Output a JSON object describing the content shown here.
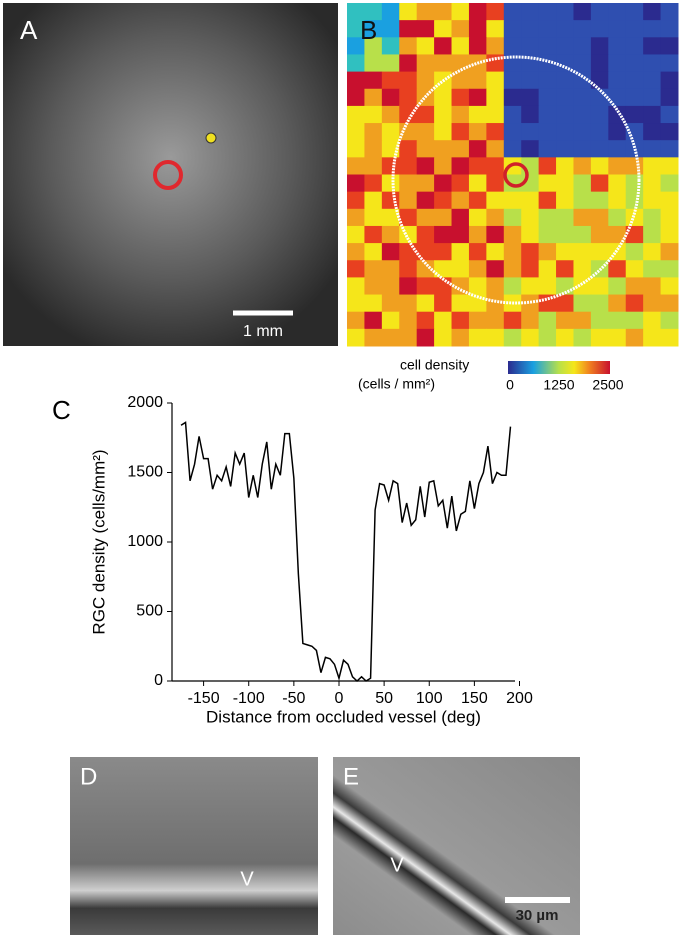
{
  "panels": {
    "a": {
      "label": "A",
      "scale_bar": "1 mm"
    },
    "b": {
      "label": "B"
    },
    "colorbar": {
      "title": "cell density",
      "unit": "(cells / mm²)",
      "ticks": [
        0,
        1250,
        2500
      ]
    },
    "c": {
      "label": "C"
    },
    "d": {
      "label": "D",
      "vessel": "V"
    },
    "e": {
      "label": "E",
      "vessel": "V",
      "scale_bar": "30 µm"
    }
  },
  "chart_data": {
    "type": "line",
    "x_label": "Distance from occluded vessel (deg)",
    "y_label": "RGC density (cells/mm²)",
    "x": [
      -175,
      -170,
      -165,
      -160,
      -155,
      -150,
      -145,
      -140,
      -135,
      -130,
      -125,
      -120,
      -115,
      -110,
      -105,
      -100,
      -95,
      -90,
      -85,
      -80,
      -75,
      -70,
      -65,
      -60,
      -55,
      -50,
      -45,
      -40,
      -35,
      -30,
      -25,
      -20,
      -15,
      -10,
      -5,
      0,
      5,
      10,
      15,
      20,
      25,
      30,
      35,
      40,
      45,
      50,
      55,
      60,
      65,
      70,
      75,
      80,
      85,
      90,
      95,
      100,
      105,
      110,
      115,
      120,
      125,
      130,
      135,
      140,
      145,
      150,
      155,
      160,
      165,
      170,
      175,
      180,
      185,
      190
    ],
    "values": [
      1840,
      1860,
      1440,
      1560,
      1760,
      1600,
      1600,
      1380,
      1480,
      1440,
      1540,
      1400,
      1640,
      1560,
      1640,
      1320,
      1480,
      1320,
      1560,
      1720,
      1380,
      1560,
      1480,
      1780,
      1780,
      1460,
      770,
      270,
      260,
      250,
      220,
      60,
      170,
      160,
      120,
      20,
      150,
      120,
      30,
      0,
      30,
      0,
      20,
      1230,
      1420,
      1410,
      1300,
      1440,
      1420,
      1140,
      1280,
      1120,
      1160,
      1400,
      1180,
      1430,
      1440,
      1260,
      1300,
      1100,
      1330,
      1080,
      1200,
      1220,
      1440,
      1240,
      1420,
      1500,
      1690,
      1420,
      1500,
      1480,
      1480,
      1830
    ],
    "color": "#000000",
    "xlim": [
      -185,
      195
    ],
    "xticks": [
      -150,
      -100,
      -50,
      0,
      50,
      100,
      150,
      200
    ],
    "ylim": [
      0,
      2000
    ],
    "yticks": [
      0,
      500,
      1000,
      1500,
      2000
    ]
  }
}
